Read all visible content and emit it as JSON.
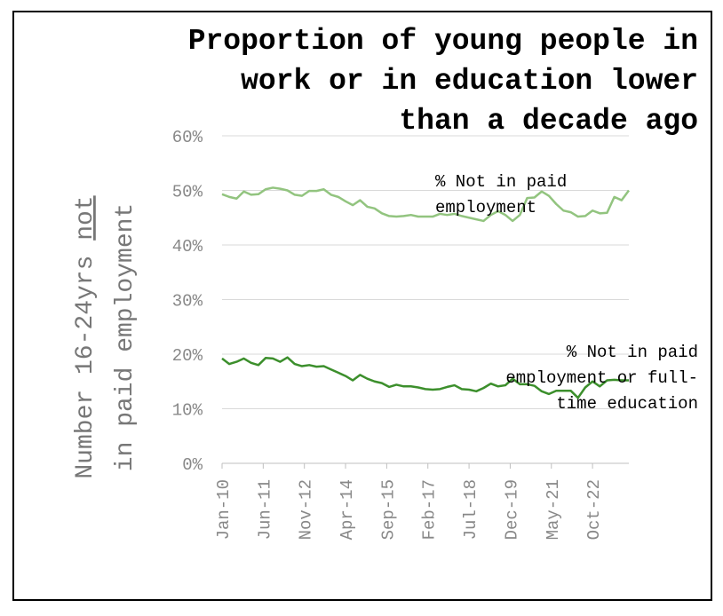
{
  "chart_data": {
    "type": "line",
    "title": [
      "Proportion of young people in",
      "work or in education lower",
      "than a decade ago"
    ],
    "y_label": [
      "Number 16-24yrs ",
      "not",
      "in paid employment"
    ],
    "x": [
      0,
      3,
      6,
      9,
      12,
      15,
      18,
      21,
      24,
      27,
      30,
      33,
      36,
      39,
      42,
      45,
      48,
      51,
      54,
      57,
      60,
      63,
      66,
      69,
      72,
      75,
      78,
      81,
      84,
      87,
      90,
      93,
      96,
      99,
      102,
      105,
      108,
      111,
      114,
      117,
      120,
      123,
      126,
      129,
      132,
      135,
      138,
      141,
      144,
      147,
      150,
      153,
      156,
      159,
      162,
      165,
      168
    ],
    "xlim": [
      0,
      168
    ],
    "xticks": [
      {
        "value": 0,
        "label": "Jan-10"
      },
      {
        "value": 17,
        "label": "Jun-11"
      },
      {
        "value": 34,
        "label": "Nov-12"
      },
      {
        "value": 51,
        "label": "Apr-14"
      },
      {
        "value": 68,
        "label": "Sep-15"
      },
      {
        "value": 85,
        "label": "Feb-17"
      },
      {
        "value": 102,
        "label": "Jul-18"
      },
      {
        "value": 119,
        "label": "Dec-19"
      },
      {
        "value": 136,
        "label": "May-21"
      },
      {
        "value": 153,
        "label": "Oct-22"
      }
    ],
    "ylim": [
      0,
      60
    ],
    "yticks": [
      {
        "value": 0,
        "label": "0%"
      },
      {
        "value": 10,
        "label": "10%"
      },
      {
        "value": 20,
        "label": "20%"
      },
      {
        "value": 30,
        "label": "30%"
      },
      {
        "value": 40,
        "label": "40%"
      },
      {
        "value": 50,
        "label": "50%"
      },
      {
        "value": 60,
        "label": "60%"
      }
    ],
    "grid": true,
    "series": [
      {
        "name": [
          "% Not in paid",
          "employment"
        ],
        "color": "#92c47f",
        "values": [
          49.3,
          48.8,
          48.5,
          49.8,
          49.2,
          49.3,
          50.2,
          50.5,
          50.3,
          50.0,
          49.2,
          49.0,
          49.9,
          49.9,
          50.2,
          49.2,
          48.8,
          48.0,
          47.3,
          48.2,
          47.0,
          46.7,
          45.8,
          45.3,
          45.2,
          45.3,
          45.5,
          45.2,
          45.2,
          45.2,
          45.7,
          45.5,
          45.7,
          45.3,
          45.0,
          44.7,
          44.4,
          45.5,
          46.2,
          45.5,
          44.4,
          45.5,
          48.6,
          48.7,
          49.8,
          49.0,
          47.5,
          46.3,
          46.0,
          45.2,
          45.3,
          46.3,
          45.8,
          45.9,
          48.8,
          48.2,
          50.0
        ]
      },
      {
        "name": [
          "% Not in paid",
          "employment or full-",
          "time education"
        ],
        "color": "#3c8f2c",
        "values": [
          19.2,
          18.2,
          18.6,
          19.2,
          18.4,
          18.0,
          19.3,
          19.2,
          18.6,
          19.4,
          18.2,
          17.8,
          18.0,
          17.7,
          17.8,
          17.2,
          16.6,
          16.0,
          15.2,
          16.2,
          15.5,
          15.0,
          14.7,
          14.0,
          14.4,
          14.1,
          14.1,
          13.9,
          13.6,
          13.5,
          13.6,
          14.0,
          14.3,
          13.6,
          13.5,
          13.2,
          13.8,
          14.6,
          14.1,
          14.3,
          15.5,
          14.5,
          14.5,
          14.2,
          13.2,
          12.7,
          13.3,
          13.3,
          13.3,
          12.0,
          13.9,
          15.0,
          14.1,
          15.2,
          15.3,
          15.2,
          15.2
        ]
      }
    ]
  }
}
